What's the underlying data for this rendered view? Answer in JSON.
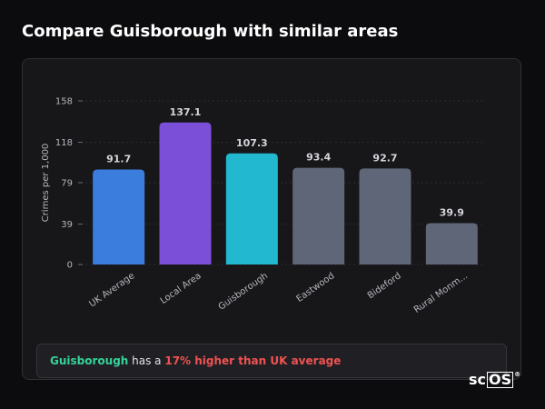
{
  "header": {
    "title": "Compare Guisborough with similar areas"
  },
  "chart_data": {
    "type": "bar",
    "categories": [
      "UK Average",
      "Local Area",
      "Guisborough",
      "Eastwood",
      "Bideford",
      "Rural Monm..."
    ],
    "values": [
      91.7,
      137.1,
      107.3,
      93.4,
      92.7,
      39.9
    ],
    "value_labels": [
      "91.7",
      "137.1",
      "107.3",
      "93.4",
      "92.7",
      "39.9"
    ],
    "colors": [
      "#3b7ddd",
      "#7c4fd8",
      "#22b8d0",
      "#5e6677",
      "#5e6677",
      "#5e6677"
    ],
    "ylabel": "Crimes per 1,000",
    "xlabel": "",
    "yticks": [
      0,
      39,
      79,
      118,
      158
    ],
    "ylim": [
      0,
      158
    ],
    "grid": true,
    "legend": "none"
  },
  "summary": {
    "area": "Guisborough",
    "middle": " has a ",
    "difference": "17% higher than UK average"
  },
  "brand": {
    "prefix": "sc",
    "boxed": "OS",
    "mark": "®"
  }
}
